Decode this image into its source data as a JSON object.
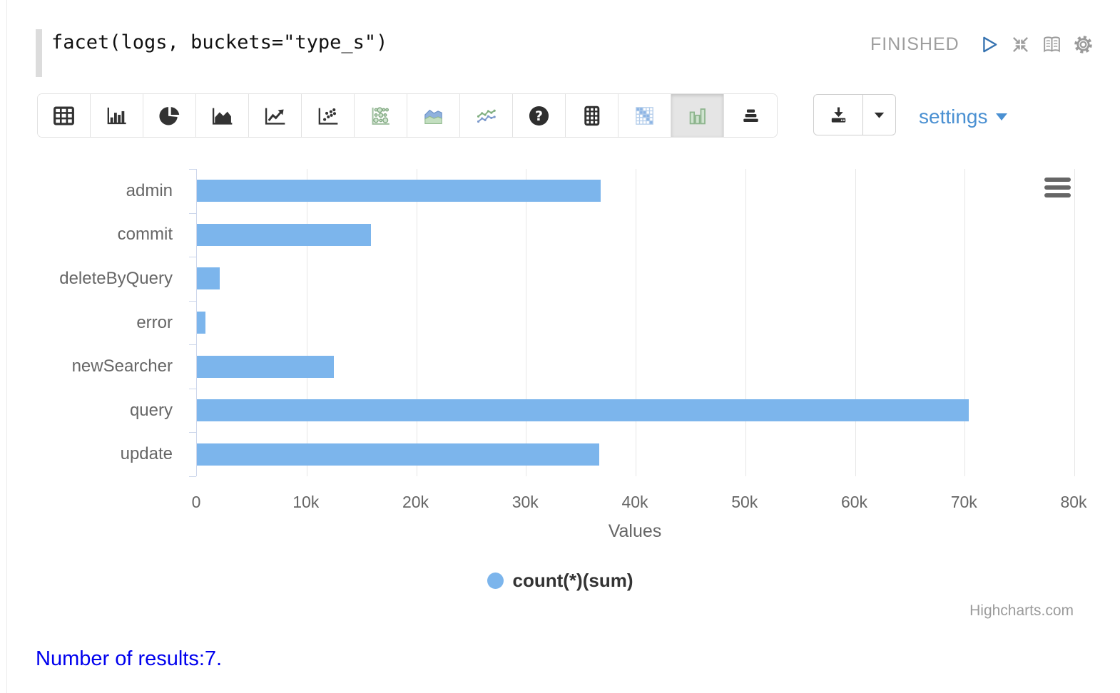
{
  "paragraph": {
    "code": "facet(logs, buckets=\"type_s\")",
    "status": "FINISHED"
  },
  "toolbar": {
    "settings_label": "settings",
    "chart_types": [
      {
        "name": "table",
        "selected": false
      },
      {
        "name": "column-chart",
        "selected": false
      },
      {
        "name": "pie-chart",
        "selected": false
      },
      {
        "name": "area-chart",
        "selected": false
      },
      {
        "name": "line-chart",
        "selected": false
      },
      {
        "name": "scatter-chart",
        "selected": false
      },
      {
        "name": "bubble-chart",
        "selected": false
      },
      {
        "name": "stacked-area-chart",
        "selected": false
      },
      {
        "name": "multi-series-line-chart",
        "selected": false
      },
      {
        "name": "help",
        "selected": false
      },
      {
        "name": "pivot-grid",
        "selected": false
      },
      {
        "name": "heatmap",
        "selected": false
      },
      {
        "name": "grouped-bar-chart",
        "selected": true
      },
      {
        "name": "horizontal-bar-chart",
        "selected": false
      }
    ],
    "header_icons": [
      "play-icon",
      "collapse-icon",
      "book-icon",
      "gear-icon"
    ],
    "download_icons": [
      "download-icon",
      "caret-down-icon"
    ]
  },
  "chart_data": {
    "type": "bar",
    "orientation": "horizontal",
    "categories": [
      "admin",
      "commit",
      "deleteByQuery",
      "error",
      "newSearcher",
      "query",
      "update"
    ],
    "values": [
      36800,
      15900,
      2100,
      800,
      12500,
      70400,
      36700
    ],
    "series_name": "count(*)(sum)",
    "title": "",
    "xlabel": "Values",
    "ylabel": "",
    "xlim": [
      0,
      80000
    ],
    "xticks": [
      {
        "value": 0,
        "label": "0"
      },
      {
        "value": 10000,
        "label": "10k"
      },
      {
        "value": 20000,
        "label": "20k"
      },
      {
        "value": 30000,
        "label": "30k"
      },
      {
        "value": 40000,
        "label": "40k"
      },
      {
        "value": 50000,
        "label": "50k"
      },
      {
        "value": 60000,
        "label": "60k"
      },
      {
        "value": 70000,
        "label": "70k"
      },
      {
        "value": 80000,
        "label": "80k"
      }
    ],
    "grid": true,
    "legend_position": "bottom-center",
    "bar_color": "#7cb5ec",
    "axis_line_color": "#ccd6eb",
    "gridline_color": "#e6e6e6",
    "label_color": "#666666",
    "credits": "Highcharts.com"
  },
  "theme": {
    "accent_blue": "#4a90d2",
    "status_gray": "#9e9e9e",
    "results_blue": "#0000ee"
  },
  "footer": {
    "results_text": "Number of results:7."
  }
}
